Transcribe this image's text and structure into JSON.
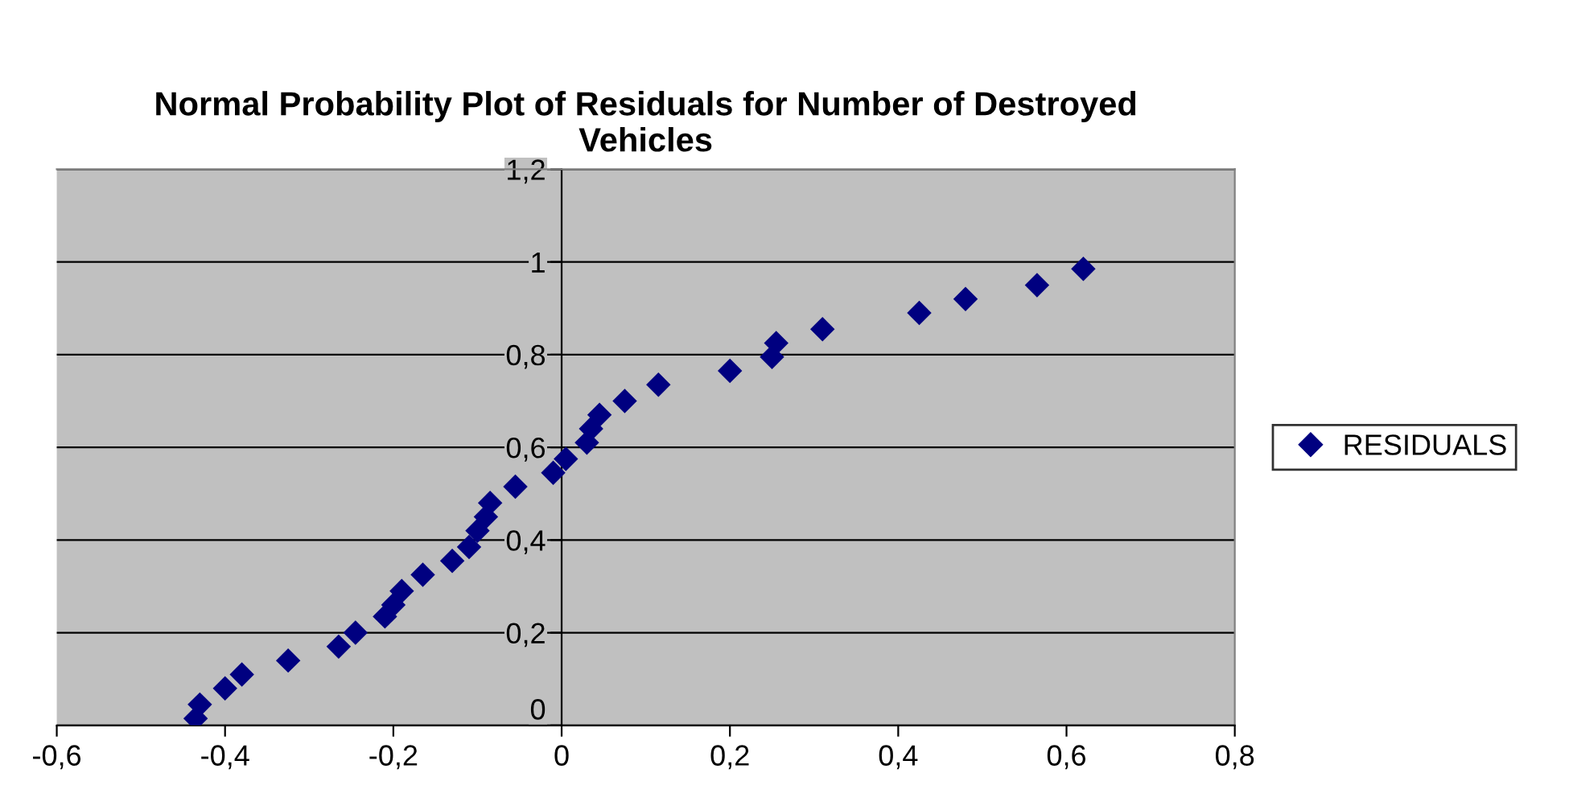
{
  "chart_data": {
    "type": "scatter",
    "title": "Normal Probability Plot of Residuals for Number of Destroyed Vehicles",
    "series": [
      {
        "name": "RESIDUALS",
        "color": "#000080",
        "x": [
          -0.435,
          -0.43,
          -0.4,
          -0.38,
          -0.325,
          -0.265,
          -0.245,
          -0.21,
          -0.2,
          -0.19,
          -0.165,
          -0.13,
          -0.11,
          -0.1,
          -0.09,
          -0.085,
          -0.055,
          -0.01,
          0.005,
          0.03,
          0.035,
          0.045,
          0.075,
          0.115,
          0.2,
          0.25,
          0.255,
          0.31,
          0.425,
          0.48,
          0.565,
          0.62
        ],
        "values": [
          0.015,
          0.045,
          0.08,
          0.11,
          0.14,
          0.17,
          0.2,
          0.235,
          0.26,
          0.29,
          0.325,
          0.355,
          0.385,
          0.42,
          0.45,
          0.48,
          0.515,
          0.545,
          0.575,
          0.61,
          0.64,
          0.67,
          0.7,
          0.735,
          0.765,
          0.795,
          0.825,
          0.855,
          0.89,
          0.92,
          0.95,
          0.985
        ]
      }
    ],
    "xlim": [
      -0.6,
      0.8
    ],
    "xticks": [
      {
        "value": -0.6,
        "label": "-0,6"
      },
      {
        "value": -0.4,
        "label": "-0,4"
      },
      {
        "value": -0.2,
        "label": "-0,2"
      },
      {
        "value": 0,
        "label": "0"
      },
      {
        "value": 0.2,
        "label": "0,2"
      },
      {
        "value": 0.4,
        "label": "0,4"
      },
      {
        "value": 0.6,
        "label": "0,6"
      },
      {
        "value": 0.8,
        "label": "0,8"
      }
    ],
    "ylim": [
      0,
      1.2
    ],
    "yticks": [
      {
        "value": 0,
        "label": "0"
      },
      {
        "value": 0.2,
        "label": "0,2"
      },
      {
        "value": 0.4,
        "label": "0,4"
      },
      {
        "value": 0.6,
        "label": "0,6"
      },
      {
        "value": 0.8,
        "label": "0,8"
      },
      {
        "value": 1,
        "label": "1"
      },
      {
        "value": 1.2,
        "label": "1,2"
      }
    ],
    "grid": "y",
    "legend": "right",
    "marker": "diamond"
  }
}
